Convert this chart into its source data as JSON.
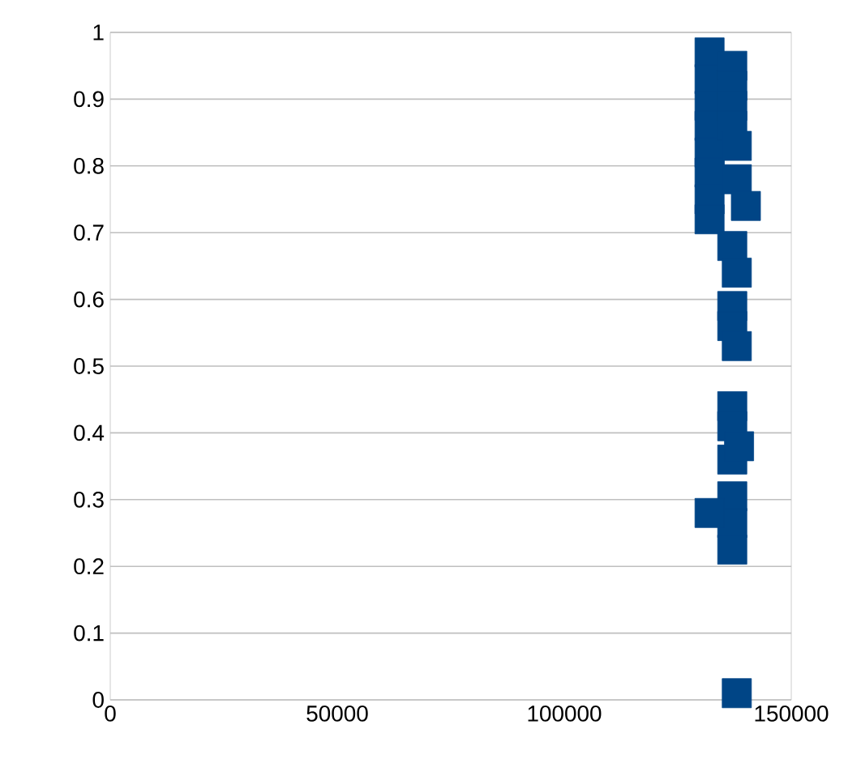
{
  "chart_data": {
    "type": "scatter",
    "color": "#004586",
    "marker": "square",
    "grid": "y",
    "x": [
      132000,
      132000,
      132000,
      132000,
      132000,
      132000,
      132000,
      132000,
      137000,
      137000,
      137000,
      137000,
      138000,
      138000,
      140000,
      137000,
      137000,
      137000,
      138000,
      138000,
      137000,
      137000,
      137000,
      138500,
      137000,
      137000,
      137000,
      132000,
      138000
    ],
    "values": [
      0.97,
      0.93,
      0.89,
      0.86,
      0.82,
      0.79,
      0.75,
      0.72,
      0.95,
      0.92,
      0.89,
      0.86,
      0.83,
      0.78,
      0.74,
      0.68,
      0.59,
      0.56,
      0.64,
      0.53,
      0.44,
      0.41,
      0.36,
      0.38,
      0.305,
      0.265,
      0.225,
      0.28,
      0.01
    ],
    "xlim": [
      0,
      150000
    ],
    "ylim": [
      0,
      1
    ],
    "xticks": [
      0,
      50000,
      100000,
      150000
    ],
    "yticks": [
      0,
      0.1,
      0.2,
      0.3,
      0.4,
      0.5,
      0.6,
      0.7,
      0.8,
      0.9,
      1
    ]
  }
}
